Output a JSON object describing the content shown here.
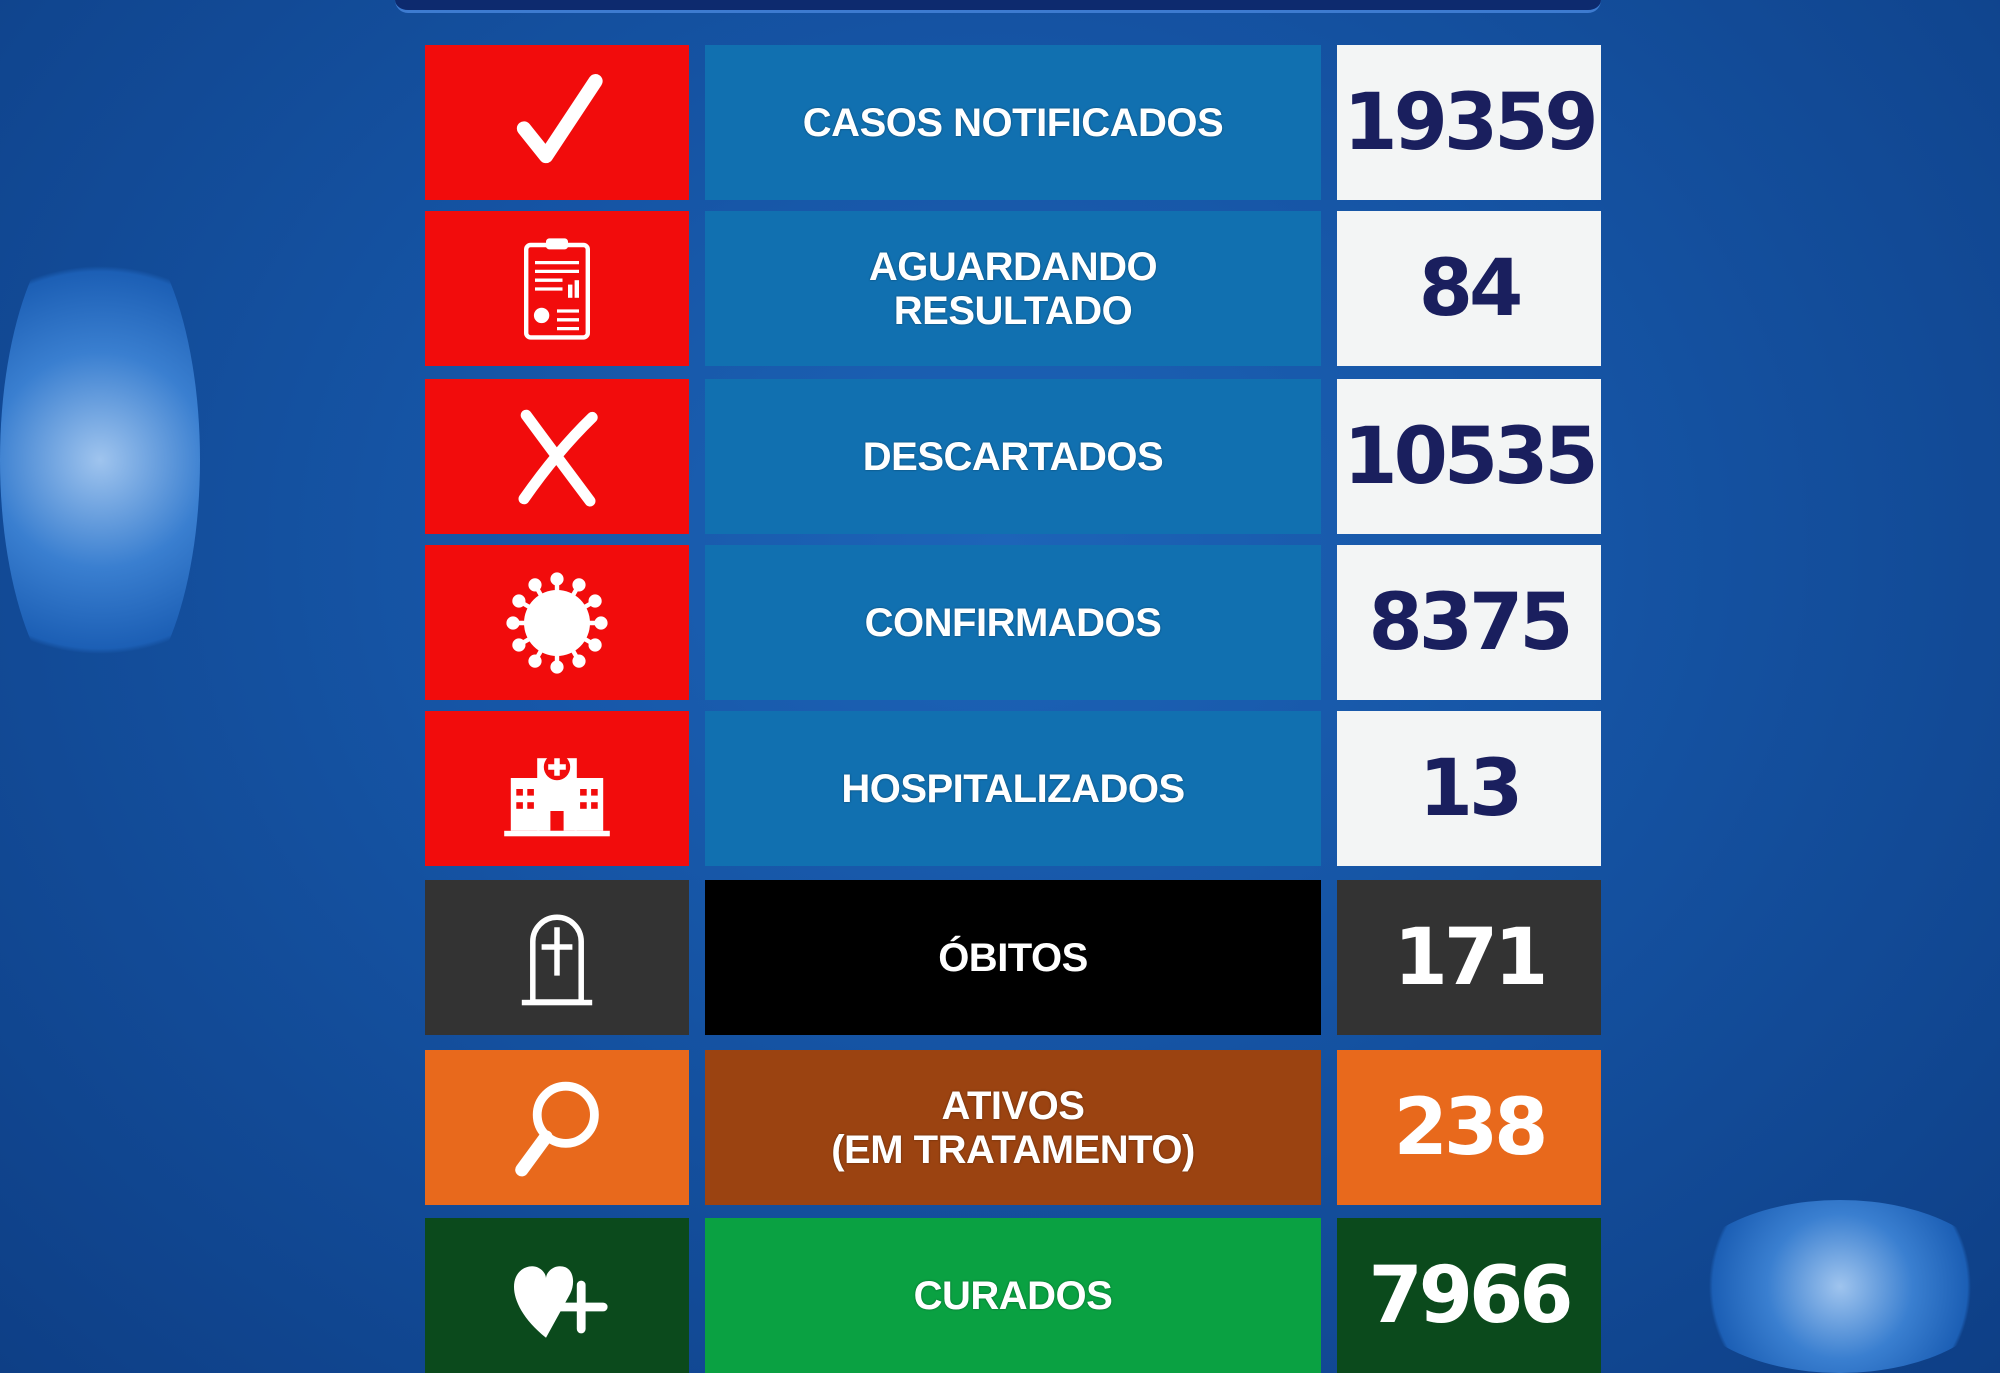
{
  "colors": {
    "red": "#f20c0c",
    "blue": "#1170b0",
    "white": "#f3f5f5",
    "navy": "#1a1f5e"
  },
  "rows": [
    {
      "icon": "check-icon",
      "label": "CASOS NOTIFICADOS",
      "value": "19359",
      "icon_bg": "#f20c0c",
      "label_bg": "#1170b0",
      "value_bg": "#f3f5f5",
      "value_color": "#1a1f5e"
    },
    {
      "icon": "clipboard-report-icon",
      "label": "AGUARDANDO\nRESULTADO",
      "value": "84",
      "icon_bg": "#f20c0c",
      "label_bg": "#1170b0",
      "value_bg": "#f3f5f5",
      "value_color": "#1a1f5e"
    },
    {
      "icon": "x-icon",
      "label": "DESCARTADOS",
      "value": "10535",
      "icon_bg": "#f20c0c",
      "label_bg": "#1170b0",
      "value_bg": "#f3f5f5",
      "value_color": "#1a1f5e"
    },
    {
      "icon": "virus-icon",
      "label": "CONFIRMADOS",
      "value": "8375",
      "icon_bg": "#f20c0c",
      "label_bg": "#1170b0",
      "value_bg": "#f3f5f5",
      "value_color": "#1a1f5e"
    },
    {
      "icon": "hospital-icon",
      "label": "HOSPITALIZADOS",
      "value": "13",
      "icon_bg": "#f20c0c",
      "label_bg": "#1170b0",
      "value_bg": "#f3f5f5",
      "value_color": "#1a1f5e"
    },
    {
      "icon": "tombstone-icon",
      "label": "ÓBITOS",
      "value": "171",
      "icon_bg": "#333333",
      "label_bg": "#000000",
      "value_bg": "#333333",
      "value_color": "#ffffff"
    },
    {
      "icon": "magnifier-icon",
      "label": "ATIVOS\n(EM TRATAMENTO)",
      "value": "238",
      "icon_bg": "#e8691c",
      "label_bg": "#9b4311",
      "value_bg": "#e8691c",
      "value_color": "#ffffff"
    },
    {
      "icon": "heart-plus-icon",
      "label": "CURADOS",
      "value": "7966",
      "icon_bg": "#0b4a1c",
      "label_bg": "#0aa142",
      "value_bg": "#0b4a1c",
      "value_color": "#ffffff"
    }
  ]
}
